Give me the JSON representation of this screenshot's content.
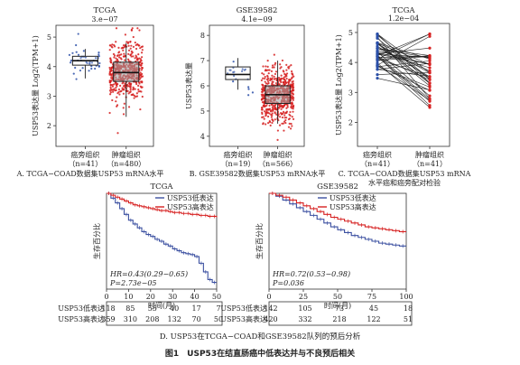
{
  "figure_caption": "图1　USP53在结直肠癌中低表达并与不良预后相关",
  "chart_data": [
    {
      "type": "box",
      "id": "A",
      "title": "TCGA",
      "pvalue": "3.e−07",
      "ylabel": "USP53表达量 Log2(TPM+1)",
      "ylim": [
        1.3,
        5.4
      ],
      "yticks": [
        2,
        3,
        4,
        5
      ],
      "groups": [
        {
          "name": "癌旁组织",
          "n_label": "（n=41）",
          "median": 4.2,
          "q1": 4.05,
          "q3": 4.35,
          "whisker_low": 3.6,
          "whisker_high": 4.6,
          "color": "#2a4fa8",
          "count": 41
        },
        {
          "name": "肿瘤组织",
          "n_label": "（n=480）",
          "median": 3.8,
          "q1": 3.5,
          "q3": 4.15,
          "whisker_low": 2.3,
          "whisker_high": 4.8,
          "color": "#d62020",
          "count": 480
        }
      ],
      "caption": "A. TCGA−COAD数据集USP53 mRNA水平"
    },
    {
      "type": "box",
      "id": "B",
      "title": "GSE39582",
      "pvalue": "4.1e−09",
      "ylabel": "USP53表达量",
      "ylim": [
        3.6,
        8.4
      ],
      "yticks": [
        4,
        5,
        6,
        7,
        8
      ],
      "groups": [
        {
          "name": "癌旁组织",
          "n_label": "（n=19）",
          "median": 6.45,
          "q1": 6.25,
          "q3": 6.75,
          "whisker_low": 5.85,
          "whisker_high": 7.1,
          "color": "#2a4fa8",
          "count": 19
        },
        {
          "name": "肿瘤组织",
          "n_label": "（n=566）",
          "median": 5.65,
          "q1": 5.3,
          "q3": 6.0,
          "whisker_low": 4.5,
          "whisker_high": 7.0,
          "color": "#d62020",
          "count": 566
        }
      ],
      "caption": "B. GSE39582数据集USP53 mRNA水平"
    },
    {
      "type": "paired",
      "id": "C",
      "title": "TCGA",
      "pvalue": "1.2e−04",
      "ylabel": "USP53表达量 Log2(TPM+1)",
      "ylim": [
        1.2,
        5.3
      ],
      "yticks": [
        2,
        3,
        4,
        5
      ],
      "groups": [
        {
          "name": "癌旁组织",
          "n_label": "（n=41）",
          "color": "#2a4fa8"
        },
        {
          "name": "肿瘤组织",
          "n_label": "（n=41）",
          "color": "#d62020"
        }
      ],
      "caption_lines": [
        "C. TCGA−COAD数据集USP53 mRNA",
        "水平癌和癌旁配对检验"
      ]
    },
    {
      "type": "km",
      "id": "D1",
      "title": "TCGA",
      "ylabel": "生存百分比",
      "xlabel": "时间(月)",
      "xlim": [
        0,
        50
      ],
      "xticks": [
        0,
        10,
        20,
        30,
        40,
        50
      ],
      "ylim": [
        0,
        1
      ],
      "legend": [
        "USP53低表达",
        "USP53高表达"
      ],
      "hr": "HR=0.43(0.29−0.65)",
      "p": "P=2.73e−05",
      "series": [
        {
          "name": "USP53低表达",
          "color": "#3a4fa0",
          "x": [
            0,
            2,
            4,
            6,
            8,
            10,
            12,
            14,
            16,
            18,
            20,
            22,
            24,
            26,
            28,
            30,
            32,
            34,
            36,
            38,
            40,
            42,
            44,
            46,
            48,
            50
          ],
          "y": [
            1,
            0.95,
            0.9,
            0.84,
            0.78,
            0.72,
            0.68,
            0.64,
            0.6,
            0.57,
            0.55,
            0.52,
            0.5,
            0.47,
            0.45,
            0.42,
            0.4,
            0.38,
            0.37,
            0.36,
            0.34,
            0.27,
            0.18,
            0.1,
            0.07,
            0.07
          ]
        },
        {
          "name": "USP53高表达",
          "color": "#d62020",
          "x": [
            0,
            2,
            4,
            6,
            8,
            10,
            12,
            14,
            16,
            18,
            20,
            22,
            24,
            26,
            28,
            30,
            32,
            34,
            36,
            38,
            40,
            42,
            44,
            46,
            48,
            50
          ],
          "y": [
            1,
            0.98,
            0.96,
            0.94,
            0.92,
            0.9,
            0.88,
            0.87,
            0.86,
            0.85,
            0.84,
            0.83,
            0.82,
            0.82,
            0.81,
            0.8,
            0.8,
            0.79,
            0.79,
            0.78,
            0.78,
            0.77,
            0.77,
            0.76,
            0.76,
            0.75
          ]
        }
      ],
      "risk_table": [
        {
          "label": "USP53低表达",
          "values": [
            "118",
            "85",
            "55",
            "40",
            "17",
            "7"
          ]
        },
        {
          "label": "USP53高表达",
          "values": [
            "359",
            "310",
            "208",
            "132",
            "70",
            "50"
          ]
        }
      ]
    },
    {
      "type": "km",
      "id": "D2",
      "title": "GSE39582",
      "ylabel": "生存百分比",
      "xlabel": "时间(月)",
      "xlim": [
        0,
        100
      ],
      "xticks": [
        0,
        25,
        50,
        75,
        100
      ],
      "ylim": [
        0,
        1
      ],
      "legend": [
        "USP53低表达",
        "USP53高表达"
      ],
      "hr": "HR=0.72(0.53−0.98)",
      "p": "P=0.036",
      "series": [
        {
          "name": "USP53低表达",
          "color": "#3a4fa0",
          "x": [
            0,
            5,
            10,
            15,
            20,
            25,
            30,
            35,
            40,
            45,
            50,
            55,
            60,
            65,
            70,
            75,
            80,
            85,
            90,
            95,
            100
          ],
          "y": [
            1,
            0.97,
            0.93,
            0.89,
            0.85,
            0.81,
            0.77,
            0.73,
            0.69,
            0.65,
            0.62,
            0.59,
            0.56,
            0.54,
            0.52,
            0.5,
            0.48,
            0.47,
            0.46,
            0.45,
            0.45
          ]
        },
        {
          "name": "USP53高表达",
          "color": "#d62020",
          "x": [
            0,
            5,
            10,
            15,
            20,
            25,
            30,
            35,
            40,
            45,
            50,
            55,
            60,
            65,
            70,
            75,
            80,
            85,
            90,
            95,
            100
          ],
          "y": [
            1,
            0.98,
            0.96,
            0.93,
            0.9,
            0.87,
            0.84,
            0.81,
            0.78,
            0.75,
            0.73,
            0.71,
            0.69,
            0.67,
            0.65,
            0.64,
            0.63,
            0.62,
            0.61,
            0.6,
            0.6
          ]
        }
      ],
      "risk_table": [
        {
          "label": "USP53低表达",
          "values": [
            "142",
            "105",
            "73",
            "45",
            "18"
          ]
        },
        {
          "label": "USP53高表达",
          "values": [
            "420",
            "332",
            "218",
            "122",
            "51"
          ]
        }
      ]
    }
  ],
  "panel_d_caption": "D. USP53在TCGA−COAD和GSE39582队列的预后分析"
}
